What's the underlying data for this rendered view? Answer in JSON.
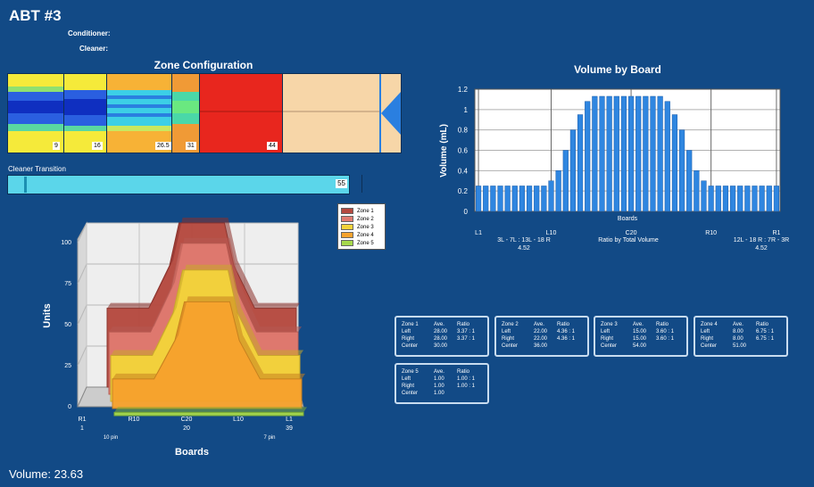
{
  "header": {
    "title": "ABT #3",
    "conditioner_label": "Conditioner:",
    "cleaner_label": "Cleaner:"
  },
  "zone_config": {
    "title": "Zone Configuration",
    "markers": [
      "9",
      "16",
      "26.5",
      "31",
      "44"
    ]
  },
  "cleaner_transition": {
    "label": "Cleaner Transition",
    "value": "55"
  },
  "volume_chart": {
    "title": "Volume by Board",
    "ylabel": "Volume (mL)",
    "xlabel": "Boards",
    "yticks": [
      "0",
      "0.2",
      "0.4",
      "0.6",
      "0.8",
      "1",
      "1.2"
    ],
    "xticks": [
      "L1",
      "L10",
      "C20",
      "R10",
      "R1"
    ],
    "ratio_left": "3L - 7L : 13L - 18 R",
    "ratio_left_value": "4.52",
    "ratio_center": "Ratio by Total Volume",
    "ratio_right": "12L - 18 R : 7R - 3R",
    "ratio_right_value": "4.52"
  },
  "units_chart": {
    "ylabel": "Units",
    "xlabel": "Boards",
    "yticks": [
      "0",
      "25",
      "50",
      "75",
      "100"
    ],
    "xticks": [
      "R1",
      "R10",
      "C20",
      "L10",
      "L1"
    ],
    "xnums": [
      "1",
      "20",
      "39"
    ],
    "xsub": [
      "10 pin",
      "7 pin"
    ],
    "legend": [
      "Zone 1",
      "Zone 2",
      "Zone 3",
      "Zone 4",
      "Zone 5"
    ]
  },
  "zone_stats": [
    {
      "name": "Zone 1",
      "h1": "Ave.",
      "h2": "Ratio",
      "rows": [
        [
          "Left",
          "28.00",
          "3.37 : 1"
        ],
        [
          "Right",
          "28.00",
          "3.37 : 1"
        ],
        [
          "Center",
          "30.00",
          ""
        ]
      ]
    },
    {
      "name": "Zone 2",
      "h1": "Ave.",
      "h2": "Ratio",
      "rows": [
        [
          "Left",
          "22.00",
          "4.36 : 1"
        ],
        [
          "Right",
          "22.00",
          "4.36 : 1"
        ],
        [
          "Center",
          "36.00",
          ""
        ]
      ]
    },
    {
      "name": "Zone 3",
      "h1": "Ave.",
      "h2": "Ratio",
      "rows": [
        [
          "Left",
          "15.00",
          "3.60 : 1"
        ],
        [
          "Right",
          "15.00",
          "3.60 : 1"
        ],
        [
          "Center",
          "54.00",
          ""
        ]
      ]
    },
    {
      "name": "Zone 4",
      "h1": "Ave.",
      "h2": "Ratio",
      "rows": [
        [
          "Left",
          "8.00",
          "6.75 : 1"
        ],
        [
          "Right",
          "8.00",
          "6.75 : 1"
        ],
        [
          "Center",
          "51.00",
          ""
        ]
      ]
    },
    {
      "name": "Zone 5",
      "h1": "Ave.",
      "h2": "Ratio",
      "rows": [
        [
          "Left",
          "1.00",
          "1.00 : 1"
        ],
        [
          "Right",
          "1.00",
          "1.00 : 1"
        ],
        [
          "Center",
          "1.00",
          ""
        ]
      ]
    }
  ],
  "footer": {
    "volume_text": "Volume: 23.63"
  },
  "chart_data": [
    {
      "type": "bar",
      "title": "Volume by Board",
      "xlabel": "Boards",
      "ylabel": "Volume (mL)",
      "ylim": [
        0,
        1.2
      ],
      "grid": true,
      "values": [
        0.25,
        0.25,
        0.25,
        0.25,
        0.25,
        0.25,
        0.25,
        0.25,
        0.25,
        0.25,
        0.3,
        0.4,
        0.6,
        0.8,
        0.95,
        1.08,
        1.13,
        1.13,
        1.13,
        1.13,
        1.13,
        1.13,
        1.13,
        1.13,
        1.13,
        1.13,
        1.08,
        0.95,
        0.8,
        0.6,
        0.4,
        0.3,
        0.25,
        0.25,
        0.25,
        0.25,
        0.25,
        0.25,
        0.25,
        0.25,
        0.25,
        0.25
      ]
    },
    {
      "type": "area",
      "xlabel": "Boards",
      "ylabel": "Units",
      "ylim": [
        0,
        100
      ],
      "legend": "top-right",
      "series": [
        {
          "name": "Zone 1",
          "left": 48,
          "center": 100
        },
        {
          "name": "Zone 2",
          "left": 38,
          "center": 92
        },
        {
          "name": "Zone 3",
          "left": 28,
          "center": 80
        },
        {
          "name": "Zone 4",
          "left": 18,
          "center": 65
        },
        {
          "name": "Zone 5",
          "left": 2,
          "center": 2
        }
      ]
    }
  ],
  "colors": {
    "background": "#124a86",
    "bar": "#2f86e0",
    "zone1": "#b5493f",
    "zone2": "#e07a70",
    "zone3": "#f3d43a",
    "zone4": "#f7a22d",
    "zone5": "#a6d84a"
  }
}
